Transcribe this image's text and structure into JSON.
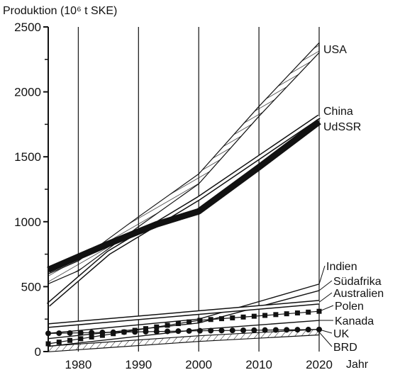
{
  "chart_data": {
    "type": "line",
    "title": "",
    "ylabel": "Produktion (10⁶ t SKE)",
    "xlabel": "Jahr",
    "xlim": [
      1975,
      2020
    ],
    "ylim": [
      0,
      2500
    ],
    "xticks": [
      1980,
      1990,
      2000,
      2010,
      2020
    ],
    "yticks": [
      0,
      500,
      1000,
      1500,
      2000,
      2500
    ],
    "grid": "vertical",
    "legend": "labels at right end of lines",
    "series": [
      {
        "name": "USA",
        "style": "band-hatched",
        "x": [
          1975,
          1980,
          1990,
          2000,
          2010,
          2020
        ],
        "y": [
          560,
          660,
          1000,
          1330,
          1850,
          2340
        ]
      },
      {
        "name": "China",
        "style": "double-line",
        "x": [
          1975,
          1985,
          2000,
          2020
        ],
        "y": [
          360,
          760,
          1180,
          1810
        ]
      },
      {
        "name": "UdSSR",
        "style": "thick-black",
        "x": [
          1975,
          1985,
          1993,
          2000,
          2010,
          2020
        ],
        "y": [
          630,
          830,
          980,
          1080,
          1420,
          1770
        ]
      },
      {
        "name": "Indien",
        "style": "line",
        "x": [
          1975,
          2000,
          2020
        ],
        "y": [
          140,
          250,
          520
        ]
      },
      {
        "name": "Südafrika",
        "style": "line",
        "x": [
          1975,
          2000,
          2020
        ],
        "y": [
          100,
          220,
          470
        ]
      },
      {
        "name": "Australien",
        "style": "double-line",
        "x": [
          1975,
          2000,
          2020
        ],
        "y": [
          200,
          300,
          380
        ]
      },
      {
        "name": "Polen",
        "style": "black-squares",
        "x": [
          1975,
          2000,
          2020
        ],
        "y": [
          60,
          240,
          310
        ]
      },
      {
        "name": "Kanada",
        "style": "line",
        "x": [
          1975,
          2000,
          2020
        ],
        "y": [
          40,
          170,
          240
        ]
      },
      {
        "name": "UK",
        "style": "black-dots",
        "x": [
          1975,
          2000,
          2020
        ],
        "y": [
          140,
          160,
          170
        ]
      },
      {
        "name": "BRD",
        "style": "band-diagonal",
        "x": [
          1975,
          2000,
          2020
        ],
        "y": [
          20,
          100,
          150
        ]
      }
    ]
  }
}
